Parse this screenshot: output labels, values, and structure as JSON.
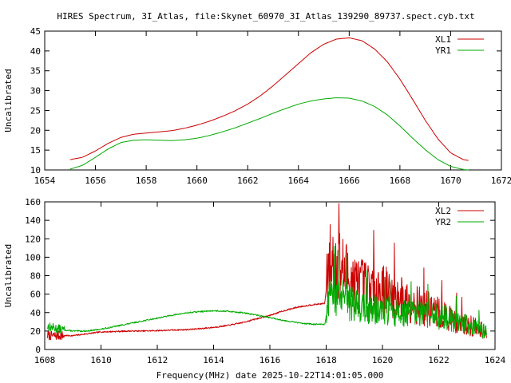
{
  "title": "HIRES Spectrum, 3I_Atlas, file:Skynet_60970_3I_Atlas_139290_89737.spect.cyb.txt",
  "xlabel": "Frequency(MHz) date 2025-10-22T14:01:05.000",
  "colors": {
    "series1": "#cc0000",
    "series2": "#00aa00",
    "axis": "#000000"
  },
  "chart_data": [
    {
      "type": "line",
      "ylabel": "Uncalibrated",
      "xlim": [
        1654,
        1672
      ],
      "ylim": [
        10,
        45
      ],
      "xticks": [
        1654,
        1656,
        1658,
        1660,
        1662,
        1664,
        1666,
        1668,
        1670,
        1672
      ],
      "yticks": [
        10,
        15,
        20,
        25,
        30,
        35,
        40,
        45
      ],
      "legend": "top-right",
      "grid": false,
      "series": [
        {
          "name": "XL1",
          "color": "#cc0000",
          "x": [
            1655.0,
            1655.5,
            1656.0,
            1656.5,
            1657.0,
            1657.5,
            1658.0,
            1658.5,
            1659.0,
            1659.5,
            1660.0,
            1660.5,
            1661.0,
            1661.5,
            1662.0,
            1662.5,
            1663.0,
            1663.5,
            1664.0,
            1664.5,
            1665.0,
            1665.5,
            1666.0,
            1666.5,
            1667.0,
            1667.5,
            1668.0,
            1668.5,
            1669.0,
            1669.5,
            1670.0,
            1670.5,
            1670.7
          ],
          "y": [
            12.6,
            13.2,
            14.8,
            16.7,
            18.2,
            19.0,
            19.3,
            19.6,
            19.9,
            20.5,
            21.3,
            22.3,
            23.5,
            24.9,
            26.6,
            28.7,
            31.2,
            34.0,
            36.8,
            39.6,
            41.7,
            43.0,
            43.3,
            42.6,
            40.5,
            37.3,
            32.9,
            27.8,
            22.5,
            17.8,
            14.3,
            12.6,
            12.4
          ]
        },
        {
          "name": "YR1",
          "color": "#00aa00",
          "x": [
            1655.0,
            1655.5,
            1656.0,
            1656.5,
            1657.0,
            1657.5,
            1658.0,
            1658.5,
            1659.0,
            1659.5,
            1660.0,
            1660.5,
            1661.0,
            1661.5,
            1662.0,
            1662.5,
            1663.0,
            1663.5,
            1664.0,
            1664.5,
            1665.0,
            1665.5,
            1666.0,
            1666.5,
            1667.0,
            1667.5,
            1668.0,
            1668.5,
            1669.0,
            1669.5,
            1670.0,
            1670.5,
            1670.7
          ],
          "y": [
            10.2,
            11.2,
            13.2,
            15.3,
            16.9,
            17.5,
            17.6,
            17.5,
            17.4,
            17.6,
            18.0,
            18.7,
            19.6,
            20.6,
            21.8,
            23.0,
            24.3,
            25.5,
            26.6,
            27.4,
            27.9,
            28.2,
            28.1,
            27.4,
            26.0,
            23.9,
            21.1,
            18.0,
            15.1,
            12.6,
            10.9,
            10.1,
            10.0
          ]
        }
      ]
    },
    {
      "type": "line",
      "ylabel": "Uncalibrated",
      "xlim": [
        1608,
        1624
      ],
      "ylim": [
        0,
        160
      ],
      "xticks": [
        1608,
        1610,
        1612,
        1614,
        1616,
        1618,
        1620,
        1622,
        1624
      ],
      "yticks": [
        0,
        20,
        40,
        60,
        80,
        100,
        120,
        140,
        160
      ],
      "legend": "top-right",
      "grid": false,
      "series": [
        {
          "name": "XL2",
          "color": "#cc0000",
          "x": [
            1608.1,
            1608.5,
            1609.0,
            1609.5,
            1610.0,
            1610.5,
            1611.0,
            1611.5,
            1612.0,
            1612.5,
            1613.0,
            1613.5,
            1614.0,
            1614.5,
            1615.0,
            1615.5,
            1616.0,
            1616.5,
            1617.0,
            1617.5,
            1617.95,
            1618.1,
            1618.5,
            1619.0,
            1619.5,
            1620.0,
            1620.5,
            1621.0,
            1621.5,
            1622.0,
            1622.5,
            1623.0,
            1623.5,
            1623.7
          ],
          "y": [
            15,
            15,
            15,
            17,
            19,
            19.5,
            20,
            20,
            20.5,
            21,
            21.5,
            22.5,
            24,
            26,
            29,
            33,
            37,
            42,
            46,
            48.5,
            50,
            95,
            90,
            72,
            67,
            65,
            58,
            52,
            45,
            40,
            33,
            27,
            22,
            20
          ],
          "noise": {
            "from": 1618.0,
            "amp": 0.28,
            "seed": 7,
            "peak": {
              "x": 1618.45,
              "y": 158
            }
          }
        },
        {
          "name": "YR2",
          "color": "#00aa00",
          "x": [
            1608.1,
            1608.5,
            1609.0,
            1609.5,
            1610.0,
            1610.5,
            1611.0,
            1611.5,
            1612.0,
            1612.5,
            1613.0,
            1613.5,
            1614.0,
            1614.5,
            1615.0,
            1615.5,
            1616.0,
            1616.5,
            1617.0,
            1617.5,
            1617.95,
            1618.1,
            1618.5,
            1619.0,
            1619.5,
            1620.0,
            1620.5,
            1621.0,
            1621.5,
            1622.0,
            1622.5,
            1623.0,
            1623.5,
            1623.7
          ],
          "y": [
            25,
            22,
            20,
            20,
            22,
            25,
            28,
            31,
            34,
            37,
            39.5,
            41,
            42,
            41.5,
            40,
            37.5,
            34.5,
            31.5,
            29,
            27.5,
            27,
            55,
            58,
            48,
            45,
            42,
            40,
            39,
            38,
            36,
            32,
            27,
            22,
            20
          ],
          "noise": {
            "from": 1618.0,
            "amp": 0.25,
            "seed": 13,
            "peak": {
              "x": 1618.3,
              "y": 112
            }
          }
        }
      ]
    }
  ]
}
